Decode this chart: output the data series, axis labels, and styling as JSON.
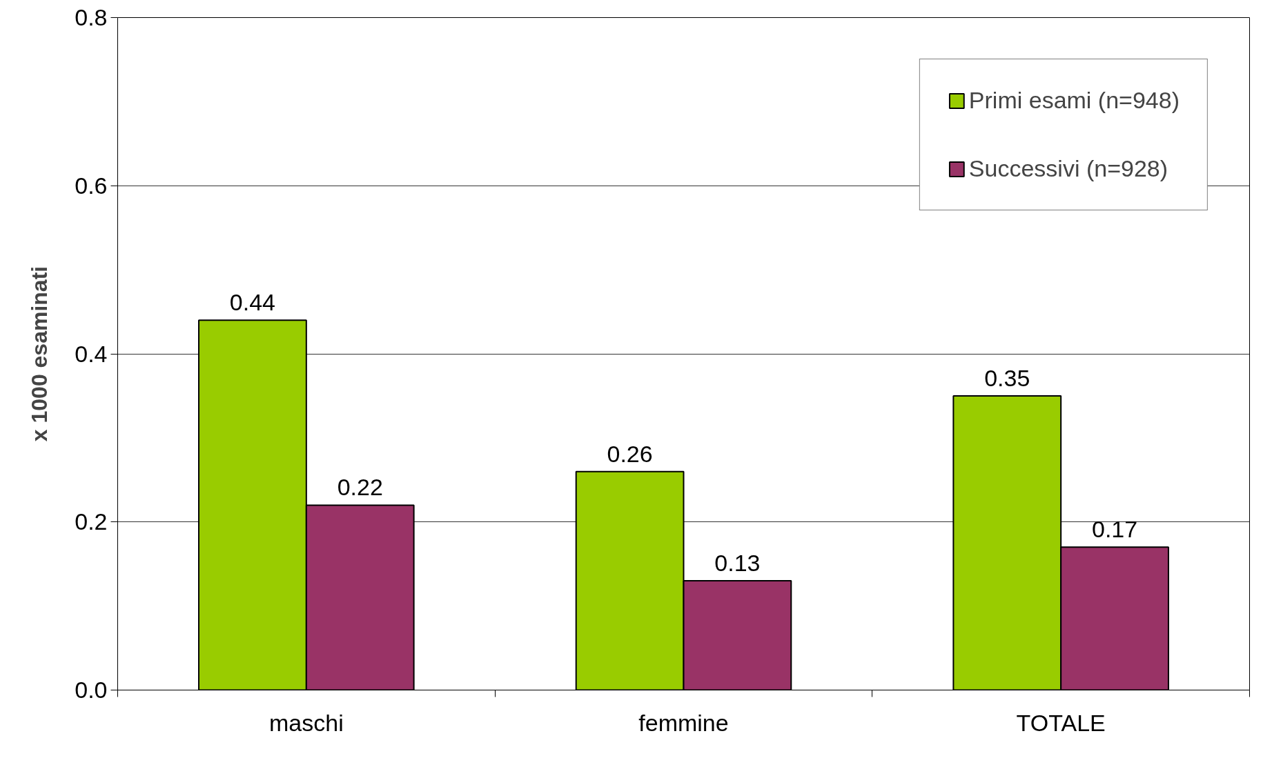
{
  "chart_data": {
    "type": "bar",
    "ylabel": "x 1000 esaminati",
    "categories": [
      "maschi",
      "femmine",
      "TOTALE"
    ],
    "series": [
      {
        "name": "Primi esami (n=948)",
        "color": "#99cc00",
        "values": [
          0.44,
          0.26,
          0.35
        ]
      },
      {
        "name": "Successivi (n=928)",
        "color": "#993366",
        "values": [
          0.22,
          0.13,
          0.17
        ]
      }
    ],
    "ylim": [
      0,
      0.8
    ],
    "yticks": [
      {
        "value": 0,
        "label": "0.0"
      },
      0.2,
      0.4,
      0.6,
      0.8
    ],
    "grid": "y",
    "legend": "top right",
    "data_labels": true
  }
}
